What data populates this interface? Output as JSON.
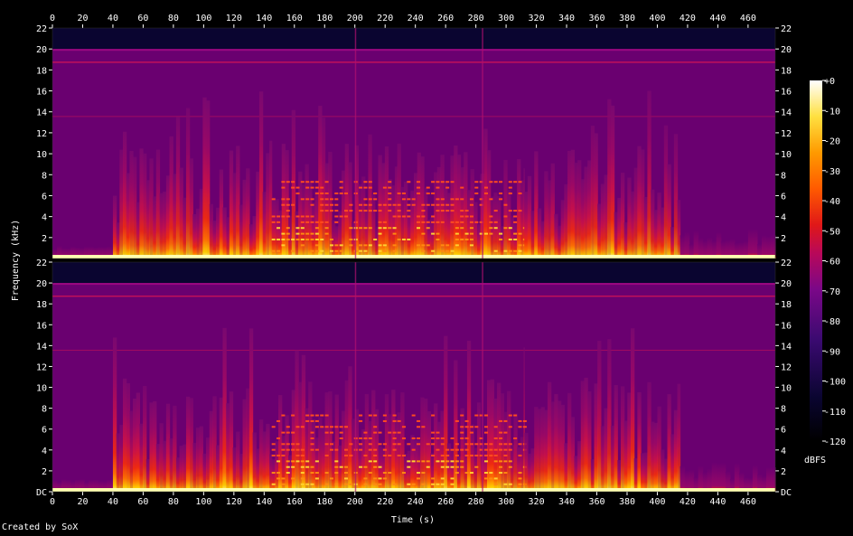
{
  "footer": {
    "credit": "Created by SoX"
  },
  "chart_data": {
    "type": "heatmap",
    "subtype": "spectrogram",
    "title": "",
    "xlabel": "Time (s)",
    "ylabel": "Frequency (kHz)",
    "xlim": [
      0,
      478
    ],
    "ylim": [
      0,
      22
    ],
    "x_ticks": [
      "0",
      "20",
      "40",
      "60",
      "80",
      "100",
      "120",
      "140",
      "160",
      "180",
      "200",
      "220",
      "240",
      "260",
      "280",
      "300",
      "320",
      "340",
      "360",
      "380",
      "400",
      "420",
      "440",
      "460"
    ],
    "y_ticks": [
      "DC",
      "2",
      "4",
      "6",
      "8",
      "10",
      "12",
      "14",
      "16",
      "18",
      "20",
      "22"
    ],
    "channels": 2,
    "colorbar": {
      "label": "dBFS",
      "ticks": [
        "+0",
        "-10",
        "-20",
        "-30",
        "-40",
        "-50",
        "-60",
        "-70",
        "-80",
        "-90",
        "-100",
        "-110",
        "-120"
      ],
      "range": [
        -120,
        0
      ]
    },
    "lowpass_cutoff_khz": 20,
    "segments": [
      {
        "start": 0,
        "end": 40,
        "level": "near-silent"
      },
      {
        "start": 40,
        "end": 145,
        "level": "loud, broadband to ~10 kHz"
      },
      {
        "start": 145,
        "end": 228,
        "level": "loud, tonal harmonics"
      },
      {
        "start": 228,
        "end": 312,
        "level": "tonal, stepped harmonics"
      },
      {
        "start": 312,
        "end": 415,
        "level": "loud, rhythmic broadband"
      },
      {
        "start": 415,
        "end": 478,
        "level": "quiet"
      }
    ],
    "colors": {
      "background": "#000000",
      "floor": "#6a0070",
      "hot": "#ffff90"
    }
  }
}
